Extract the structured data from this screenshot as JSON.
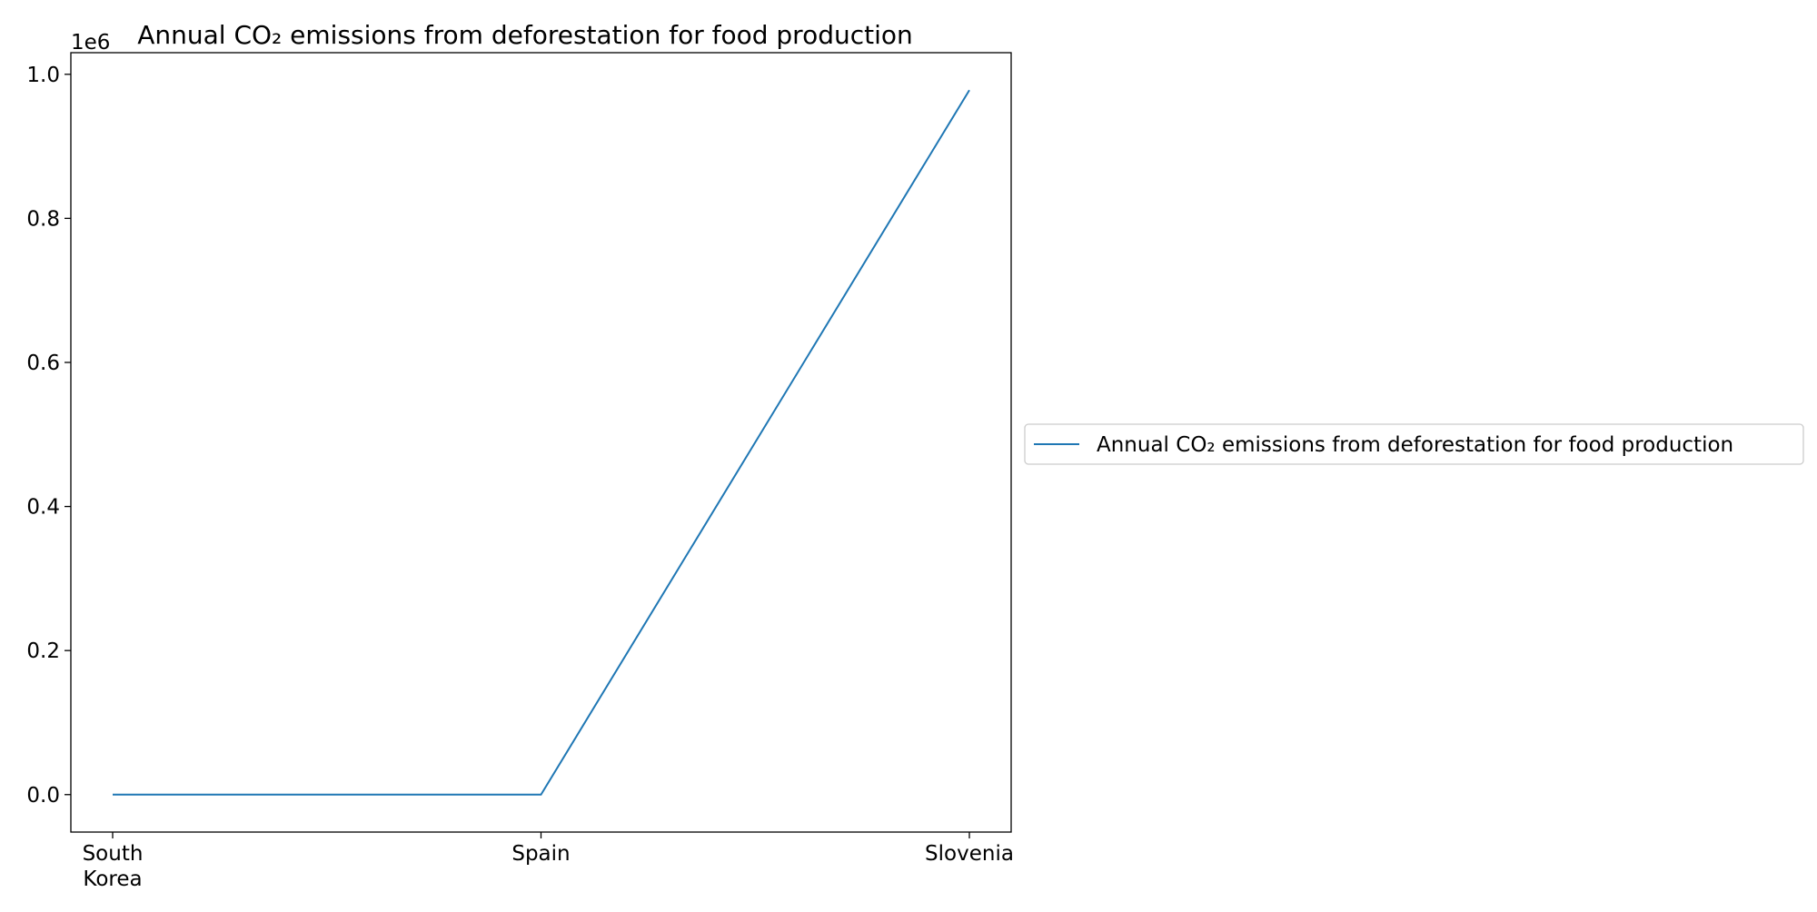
{
  "chart_data": {
    "type": "line",
    "title": "Annual CO₂ emissions from deforestation for food production",
    "xlabel": "",
    "ylabel": "",
    "categories": [
      "South Korea",
      "Spain",
      "Slovenia"
    ],
    "category_tick_labels": [
      [
        "South",
        "Korea"
      ],
      [
        "Spain"
      ],
      [
        "Slovenia"
      ]
    ],
    "series": [
      {
        "name": "Annual CO₂ emissions from deforestation for food production",
        "values": [
          0,
          0,
          978000
        ],
        "color": "#1f77b4"
      }
    ],
    "ylim": [
      -52000,
      1030000
    ],
    "y_ticks": [
      0,
      200000,
      400000,
      600000,
      800000,
      1000000
    ],
    "y_tick_labels": [
      "0.0",
      "0.2",
      "0.4",
      "0.6",
      "0.8",
      "1.0"
    ],
    "y_offset_label": "1e6",
    "grid": false,
    "legend": {
      "placement": "center-right outside plot",
      "entries": [
        "Annual CO₂ emissions from deforestation for food production"
      ]
    }
  }
}
